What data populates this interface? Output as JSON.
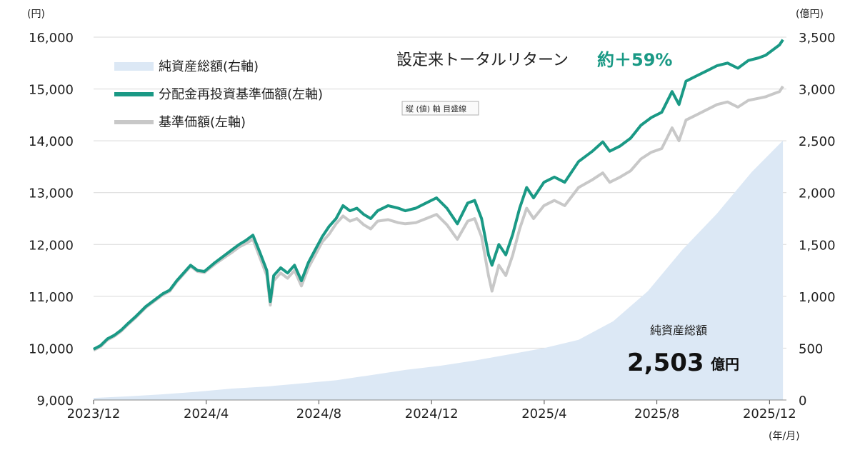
{
  "chart_data": {
    "type": "line",
    "x_ticks": [
      "2023/12",
      "2024/4",
      "2024/8",
      "2024/12",
      "2025/4",
      "2025/8",
      "2025/12"
    ],
    "x_unit": "(年/月)",
    "y_left": {
      "unit": "(円)",
      "range": [
        9000,
        16000
      ],
      "ticks": [
        "9,000",
        "10,000",
        "11,000",
        "12,000",
        "13,000",
        "14,000",
        "15,000",
        "16,000"
      ]
    },
    "y_right": {
      "unit": "(億円)",
      "range": [
        0,
        3500
      ],
      "ticks": [
        "0",
        "500",
        "1,000",
        "1,500",
        "2,000",
        "2,500",
        "3,000",
        "3,500"
      ]
    },
    "legend": [
      "純資産総額(右軸)",
      "分配金再投資基準価額(左軸)",
      "基準価額(左軸)"
    ],
    "total_return": {
      "label": "設定来トータルリターン",
      "value": "約＋59%"
    },
    "net_assets": {
      "label": "純資産総額",
      "value": "2,503",
      "unit": "億円"
    },
    "tooltip": "縦 (値) 軸 目盛線",
    "colors": {
      "reinvested": "#1a9985",
      "nav": "#c8c8c8",
      "assets": "#dce8f5",
      "grid": "#d9d9d9"
    },
    "series": [
      {
        "name": "分配金再投資基準価額(左軸)",
        "axis": "left",
        "points": [
          [
            0,
            9980
          ],
          [
            0.2,
            10050
          ],
          [
            0.4,
            10180
          ],
          [
            0.6,
            10250
          ],
          [
            0.8,
            10350
          ],
          [
            1.0,
            10480
          ],
          [
            1.2,
            10600
          ],
          [
            1.5,
            10800
          ],
          [
            1.8,
            10950
          ],
          [
            2.0,
            11050
          ],
          [
            2.2,
            11120
          ],
          [
            2.4,
            11300
          ],
          [
            2.6,
            11450
          ],
          [
            2.8,
            11600
          ],
          [
            3.0,
            11500
          ],
          [
            3.2,
            11480
          ],
          [
            3.5,
            11650
          ],
          [
            3.8,
            11800
          ],
          [
            4.0,
            11900
          ],
          [
            4.2,
            12000
          ],
          [
            4.4,
            12080
          ],
          [
            4.6,
            12180
          ],
          [
            4.8,
            11850
          ],
          [
            5.0,
            11500
          ],
          [
            5.1,
            10900
          ],
          [
            5.2,
            11400
          ],
          [
            5.4,
            11550
          ],
          [
            5.6,
            11450
          ],
          [
            5.8,
            11600
          ],
          [
            6.0,
            11300
          ],
          [
            6.2,
            11650
          ],
          [
            6.4,
            11900
          ],
          [
            6.6,
            12150
          ],
          [
            6.8,
            12350
          ],
          [
            7.0,
            12500
          ],
          [
            7.2,
            12750
          ],
          [
            7.4,
            12650
          ],
          [
            7.6,
            12700
          ],
          [
            7.8,
            12580
          ],
          [
            8.0,
            12500
          ],
          [
            8.2,
            12650
          ],
          [
            8.5,
            12750
          ],
          [
            8.8,
            12700
          ],
          [
            9.0,
            12650
          ],
          [
            9.3,
            12700
          ],
          [
            9.6,
            12800
          ],
          [
            9.9,
            12900
          ],
          [
            10.2,
            12700
          ],
          [
            10.5,
            12400
          ],
          [
            10.8,
            12800
          ],
          [
            11.0,
            12850
          ],
          [
            11.2,
            12500
          ],
          [
            11.4,
            11800
          ],
          [
            11.5,
            11600
          ],
          [
            11.7,
            12000
          ],
          [
            11.9,
            11800
          ],
          [
            12.1,
            12200
          ],
          [
            12.3,
            12700
          ],
          [
            12.5,
            13100
          ],
          [
            12.7,
            12900
          ],
          [
            13.0,
            13200
          ],
          [
            13.3,
            13300
          ],
          [
            13.6,
            13200
          ],
          [
            14.0,
            13600
          ],
          [
            14.4,
            13800
          ],
          [
            14.7,
            13980
          ],
          [
            14.9,
            13800
          ],
          [
            15.2,
            13900
          ],
          [
            15.5,
            14050
          ],
          [
            15.8,
            14300
          ],
          [
            16.1,
            14450
          ],
          [
            16.4,
            14550
          ],
          [
            16.7,
            14950
          ],
          [
            16.9,
            14700
          ],
          [
            17.1,
            15150
          ],
          [
            17.4,
            15250
          ],
          [
            17.7,
            15350
          ],
          [
            18.0,
            15450
          ],
          [
            18.3,
            15500
          ],
          [
            18.6,
            15400
          ],
          [
            18.9,
            15550
          ],
          [
            19.2,
            15600
          ],
          [
            19.4,
            15650
          ],
          [
            19.6,
            15750
          ],
          [
            19.8,
            15850
          ],
          [
            19.9,
            15950
          ]
        ]
      },
      {
        "name": "基準価額(左軸)",
        "axis": "left",
        "points": [
          [
            0,
            9960
          ],
          [
            0.2,
            10030
          ],
          [
            0.4,
            10160
          ],
          [
            0.6,
            10230
          ],
          [
            0.8,
            10330
          ],
          [
            1.0,
            10460
          ],
          [
            1.2,
            10580
          ],
          [
            1.5,
            10780
          ],
          [
            1.8,
            10930
          ],
          [
            2.0,
            11030
          ],
          [
            2.2,
            11100
          ],
          [
            2.4,
            11280
          ],
          [
            2.6,
            11430
          ],
          [
            2.8,
            11580
          ],
          [
            3.0,
            11480
          ],
          [
            3.2,
            11460
          ],
          [
            3.5,
            11620
          ],
          [
            3.8,
            11760
          ],
          [
            4.0,
            11850
          ],
          [
            4.2,
            11950
          ],
          [
            4.4,
            12020
          ],
          [
            4.6,
            12100
          ],
          [
            4.8,
            11750
          ],
          [
            5.0,
            11400
          ],
          [
            5.1,
            10830
          ],
          [
            5.2,
            11300
          ],
          [
            5.4,
            11450
          ],
          [
            5.6,
            11350
          ],
          [
            5.8,
            11500
          ],
          [
            6.0,
            11200
          ],
          [
            6.2,
            11550
          ],
          [
            6.4,
            11800
          ],
          [
            6.6,
            12050
          ],
          [
            6.8,
            12200
          ],
          [
            7.0,
            12400
          ],
          [
            7.2,
            12550
          ],
          [
            7.4,
            12450
          ],
          [
            7.6,
            12500
          ],
          [
            7.8,
            12380
          ],
          [
            8.0,
            12300
          ],
          [
            8.2,
            12450
          ],
          [
            8.5,
            12480
          ],
          [
            8.8,
            12420
          ],
          [
            9.0,
            12400
          ],
          [
            9.3,
            12420
          ],
          [
            9.6,
            12500
          ],
          [
            9.9,
            12580
          ],
          [
            10.2,
            12380
          ],
          [
            10.5,
            12100
          ],
          [
            10.8,
            12450
          ],
          [
            11.0,
            12500
          ],
          [
            11.2,
            12150
          ],
          [
            11.4,
            11400
          ],
          [
            11.5,
            11100
          ],
          [
            11.7,
            11600
          ],
          [
            11.9,
            11400
          ],
          [
            12.1,
            11800
          ],
          [
            12.3,
            12300
          ],
          [
            12.5,
            12700
          ],
          [
            12.7,
            12500
          ],
          [
            13.0,
            12750
          ],
          [
            13.3,
            12850
          ],
          [
            13.6,
            12750
          ],
          [
            14.0,
            13100
          ],
          [
            14.4,
            13250
          ],
          [
            14.7,
            13380
          ],
          [
            14.9,
            13200
          ],
          [
            15.2,
            13300
          ],
          [
            15.5,
            13420
          ],
          [
            15.8,
            13650
          ],
          [
            16.1,
            13780
          ],
          [
            16.4,
            13850
          ],
          [
            16.7,
            14250
          ],
          [
            16.9,
            14000
          ],
          [
            17.1,
            14400
          ],
          [
            17.4,
            14500
          ],
          [
            17.7,
            14600
          ],
          [
            18.0,
            14700
          ],
          [
            18.3,
            14750
          ],
          [
            18.6,
            14650
          ],
          [
            18.9,
            14780
          ],
          [
            19.2,
            14820
          ],
          [
            19.4,
            14850
          ],
          [
            19.6,
            14900
          ],
          [
            19.8,
            14950
          ],
          [
            19.9,
            15050
          ]
        ]
      },
      {
        "name": "純資産総額(右軸)",
        "axis": "right",
        "points": [
          [
            0,
            20
          ],
          [
            1,
            35
          ],
          [
            2,
            55
          ],
          [
            3,
            80
          ],
          [
            4,
            110
          ],
          [
            5,
            130
          ],
          [
            6,
            160
          ],
          [
            7,
            190
          ],
          [
            8,
            240
          ],
          [
            9,
            290
          ],
          [
            10,
            330
          ],
          [
            11,
            380
          ],
          [
            12,
            440
          ],
          [
            13,
            500
          ],
          [
            14,
            580
          ],
          [
            15,
            760
          ],
          [
            16,
            1050
          ],
          [
            17,
            1450
          ],
          [
            18,
            1800
          ],
          [
            19,
            2200
          ],
          [
            19.9,
            2503
          ]
        ]
      }
    ]
  }
}
